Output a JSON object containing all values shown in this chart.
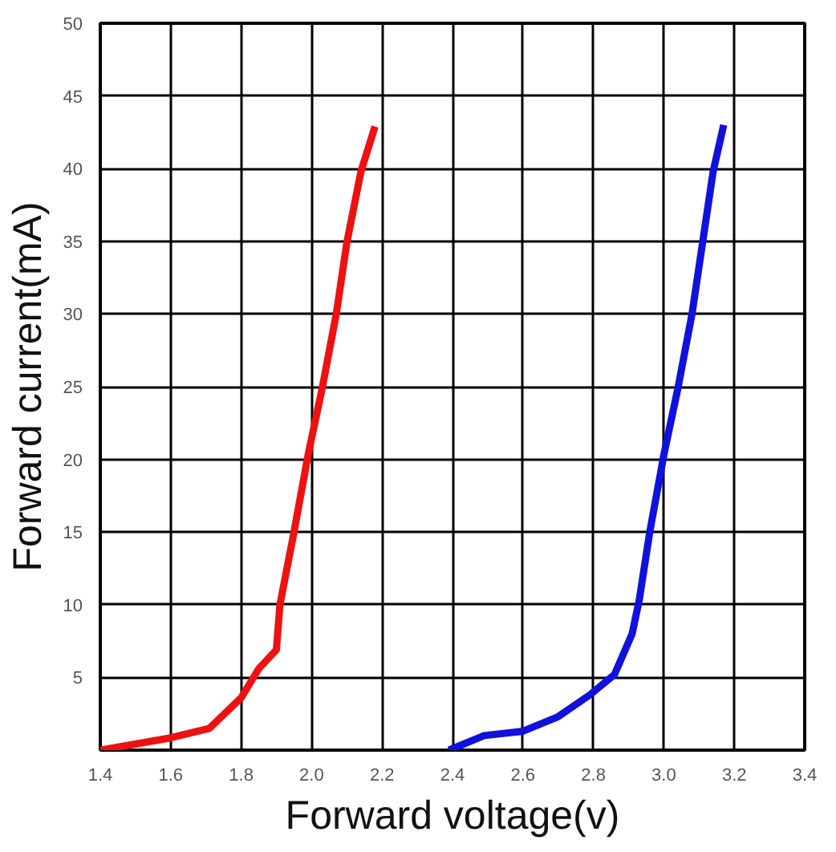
{
  "chart_data": {
    "type": "line",
    "xlabel": "Forward voltage(v)",
    "ylabel": "Forward current(mA)",
    "xlim": [
      1.4,
      3.4
    ],
    "ylim": [
      0,
      50
    ],
    "xticks": [
      {
        "value": 1.4,
        "label": "1.4"
      },
      {
        "value": 1.6,
        "label": "1.6"
      },
      {
        "value": 1.8,
        "label": "1.8"
      },
      {
        "value": 2.0,
        "label": "2.0"
      },
      {
        "value": 2.2,
        "label": "2.2"
      },
      {
        "value": 2.4,
        "label": "2.4"
      },
      {
        "value": 2.6,
        "label": "2.6"
      },
      {
        "value": 2.8,
        "label": "2.8"
      },
      {
        "value": 3.0,
        "label": "3.0"
      },
      {
        "value": 3.2,
        "label": "3.2"
      },
      {
        "value": 3.4,
        "label": "3.4"
      }
    ],
    "yticks": [
      {
        "value": 0,
        "label": null
      },
      5,
      10,
      15,
      20,
      25,
      30,
      35,
      40,
      45,
      50
    ],
    "grid": true,
    "series": [
      {
        "color": "#ee1111",
        "x": [
          1.4,
          1.59,
          1.71,
          1.8,
          1.85,
          1.9,
          1.91,
          1.95,
          1.99,
          2.03,
          2.07,
          2.1,
          2.14,
          2.18
        ],
        "values": [
          0,
          0.8,
          1.5,
          3.6,
          5.6,
          6.9,
          10,
          15,
          20.3,
          24.9,
          30,
          34.9,
          39.8,
          42.9
        ]
      },
      {
        "color": "#1111dd",
        "x": [
          2.39,
          2.49,
          2.6,
          2.7,
          2.79,
          2.86,
          2.91,
          2.93,
          2.96,
          3.0,
          3.04,
          3.08,
          3.11,
          3.14,
          3.17
        ],
        "values": [
          0,
          1,
          1.3,
          2.3,
          3.8,
          5.2,
          8,
          10.3,
          15,
          20.3,
          24.9,
          30,
          34.9,
          39.8,
          43
        ]
      }
    ]
  }
}
